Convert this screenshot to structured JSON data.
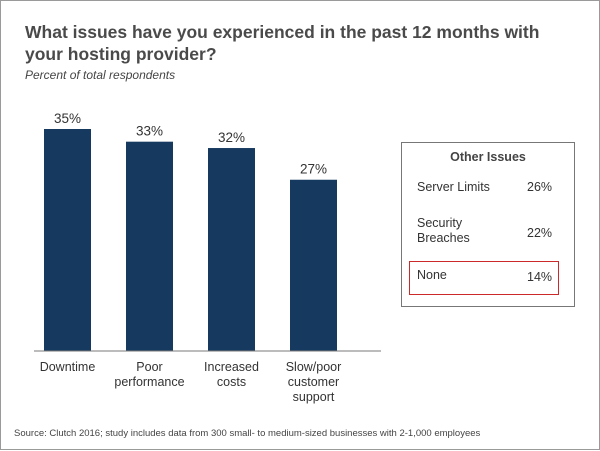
{
  "chart_data": {
    "type": "bar",
    "title": "What issues have you experienced in the past 12 months with your hosting provider?",
    "subtitle": "Percent of total respondents",
    "categories": [
      "Downtime",
      "Poor performance",
      "Increased costs",
      "Slow/poor customer support"
    ],
    "category_lines": [
      [
        "Downtime"
      ],
      [
        "Poor",
        "performance"
      ],
      [
        "Increased",
        "costs"
      ],
      [
        "Slow/poor",
        "customer",
        "support"
      ]
    ],
    "values": [
      35,
      33,
      32,
      27
    ],
    "data_labels": [
      "35%",
      "33%",
      "32%",
      "27%"
    ],
    "ylim": [
      0,
      35
    ],
    "grid": false,
    "bar_color": "#163a5f"
  },
  "other_issues": {
    "title": "Other Issues",
    "items": [
      {
        "label_lines": [
          "Server Limits"
        ],
        "value": "26%"
      },
      {
        "label_lines": [
          "Security",
          "Breaches"
        ],
        "value": "22%"
      },
      {
        "label_lines": [
          "None"
        ],
        "value": "14%",
        "highlighted": true
      }
    ],
    "highlight_color": "#cc2a2a"
  },
  "source": "Source: Clutch 2016; study includes data from 300 small- to medium-sized businesses with 2-1,000 employees"
}
